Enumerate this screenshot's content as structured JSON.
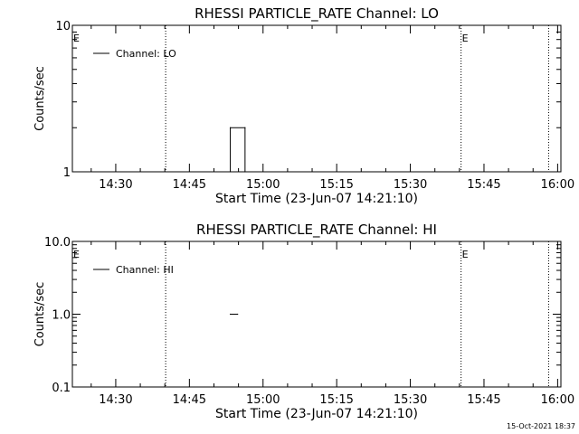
{
  "footer": {
    "timestamp": "15-Oct-2021 18:37"
  },
  "chart_data": [
    {
      "type": "line",
      "title": "RHESSI PARTICLE_RATE Channel: LO",
      "xlabel": "Start Time (23-Jun-07 14:21:10)",
      "ylabel": "Counts/sec",
      "yscale": "log",
      "xlim": [
        "14:21:10",
        "16:00:40"
      ],
      "ylim": [
        1,
        10
      ],
      "x_tick_labels": [
        "14:30",
        "14:45",
        "15:00",
        "15:15",
        "15:30",
        "15:45",
        "16:00"
      ],
      "y_tick_labels": [
        "1",
        "10"
      ],
      "grid": false,
      "legend": {
        "placement": "top-left",
        "entries": [
          "Channel: LO"
        ]
      },
      "series": [
        {
          "name": "Channel: LO",
          "x": [
            "14:53:20",
            "14:53:20",
            "14:56:20",
            "14:56:20"
          ],
          "y": [
            1,
            2,
            2,
            1
          ]
        }
      ],
      "event_markers": [
        {
          "time": "14:40:10",
          "label": ""
        },
        {
          "time": "15:40:20",
          "label": "E"
        },
        {
          "time": "15:58:10",
          "label": ""
        }
      ],
      "edge_labels": [
        {
          "label": "E"
        }
      ]
    },
    {
      "type": "line",
      "title": "RHESSI PARTICLE_RATE Channel: HI",
      "xlabel": "Start Time (23-Jun-07 14:21:10)",
      "ylabel": "Counts/sec",
      "yscale": "log",
      "xlim": [
        "14:21:10",
        "16:00:40"
      ],
      "ylim": [
        0.1,
        10
      ],
      "x_tick_labels": [
        "14:30",
        "14:45",
        "15:00",
        "15:15",
        "15:30",
        "15:45",
        "16:00"
      ],
      "y_tick_labels": [
        "0.1",
        "1.0",
        "10.0"
      ],
      "grid": false,
      "legend": {
        "placement": "top-left",
        "entries": [
          "Channel: HI"
        ]
      },
      "series": [
        {
          "name": "Channel: HI",
          "x": [
            "14:53:20",
            "14:54:50"
          ],
          "y": [
            1,
            1
          ]
        }
      ],
      "event_markers": [
        {
          "time": "14:40:10",
          "label": ""
        },
        {
          "time": "15:40:20",
          "label": "E"
        },
        {
          "time": "15:58:10",
          "label": ""
        }
      ],
      "edge_labels": [
        {
          "label": "E"
        }
      ]
    }
  ]
}
